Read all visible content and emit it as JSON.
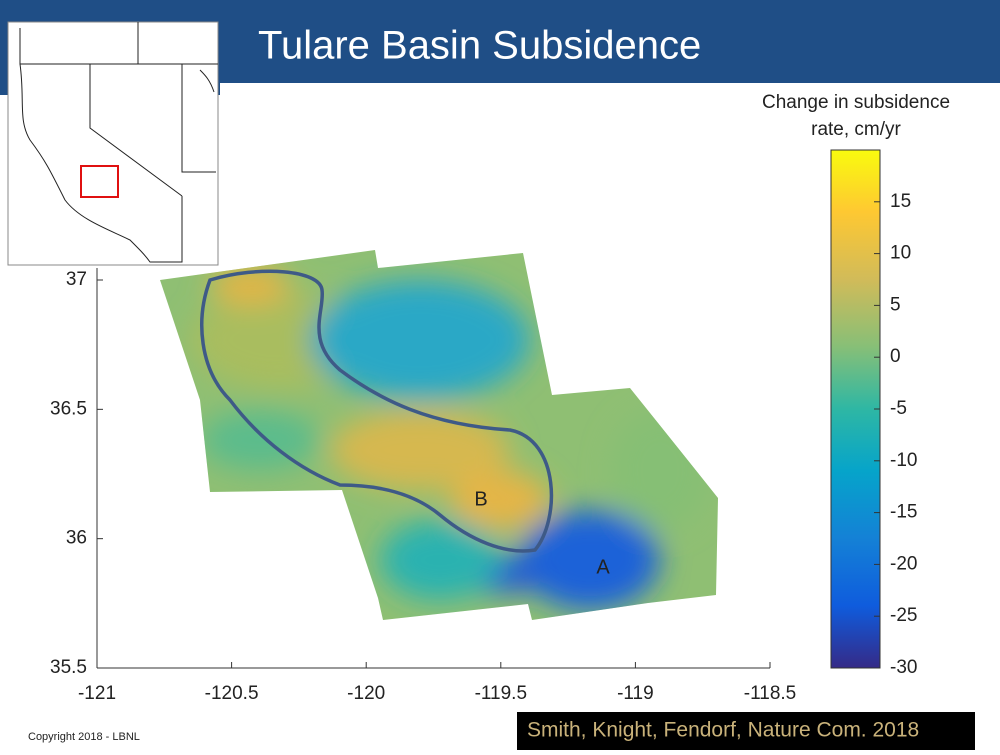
{
  "title": "Tulare Basin Subsidence",
  "map": {
    "xlim": [
      -121,
      -118.5
    ],
    "xticks": [
      -121,
      -120.5,
      -120,
      -119.5,
      -119,
      -118.5
    ],
    "ylim": [
      35.5,
      37
    ],
    "yticks": [
      35.5,
      36,
      36.5,
      37
    ],
    "labels": [
      "A",
      "B"
    ],
    "colorbar": {
      "title": [
        "Change in subsidence",
        "rate, cm/yr"
      ],
      "lim": [
        -30,
        20
      ],
      "ticks": [
        -30,
        -25,
        -20,
        -15,
        -10,
        -5,
        0,
        5,
        10,
        15
      ]
    }
  },
  "citation": "Smith, Knight, Fendorf, Nature Com. 2018",
  "copyright": "Copyright 2018 - LBNL"
}
